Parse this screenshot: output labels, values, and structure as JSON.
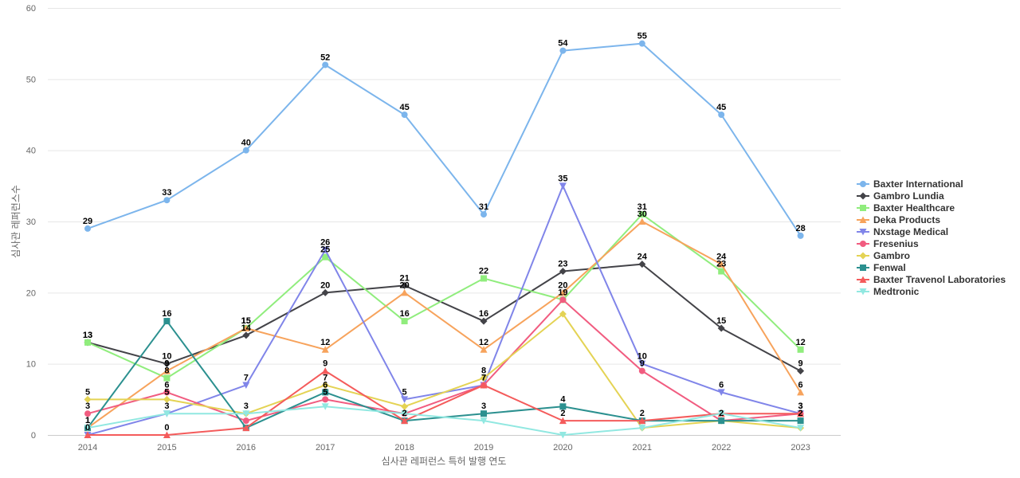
{
  "chart_data": {
    "type": "line",
    "title": "",
    "xlabel": "심사관 레퍼런스 특허 발행 연도",
    "ylabel": "심사관 레퍼런스수",
    "x": [
      "2014",
      "2015",
      "2016",
      "2017",
      "2018",
      "2019",
      "2020",
      "2021",
      "2022",
      "2023"
    ],
    "ylim": [
      0,
      60
    ],
    "yticks": [
      0,
      10,
      20,
      30,
      40,
      50,
      60
    ],
    "grid": true,
    "legend_position": "right",
    "series": [
      {
        "name": "Baxter International",
        "color": "#7cb5ec",
        "marker": "circle",
        "values": [
          29,
          33,
          40,
          52,
          45,
          31,
          54,
          55,
          45,
          28
        ]
      },
      {
        "name": "Gambro Lundia",
        "color": "#434348",
        "marker": "diamond",
        "values": [
          13,
          10,
          14,
          20,
          21,
          16,
          23,
          24,
          15,
          9
        ]
      },
      {
        "name": "Baxter Healthcare",
        "color": "#90ed7d",
        "marker": "square",
        "values": [
          13,
          8,
          15,
          25,
          16,
          22,
          19,
          31,
          23,
          12
        ]
      },
      {
        "name": "Deka Products",
        "color": "#f7a35c",
        "marker": "triangle",
        "values": [
          1,
          9,
          15,
          12,
          20,
          12,
          20,
          30,
          24,
          6
        ]
      },
      {
        "name": "Nxstage Medical",
        "color": "#8085e9",
        "marker": "triangle-down",
        "values": [
          0,
          3,
          7,
          26,
          5,
          7,
          35,
          10,
          6,
          3
        ]
      },
      {
        "name": "Fresenius",
        "color": "#f15c80",
        "marker": "circle",
        "values": [
          3,
          6,
          2,
          5,
          3,
          7,
          19,
          9,
          2,
          3
        ]
      },
      {
        "name": "Gambro",
        "color": "#e4d354",
        "marker": "diamond",
        "values": [
          5,
          5,
          3,
          7,
          4,
          8,
          17,
          1,
          2,
          1
        ]
      },
      {
        "name": "Fenwal",
        "color": "#2b908f",
        "marker": "square",
        "values": [
          1,
          16,
          1,
          6,
          2,
          3,
          4,
          2,
          2,
          2
        ]
      },
      {
        "name": "Baxter Travenol Laboratories",
        "color": "#f45b5b",
        "marker": "triangle",
        "values": [
          0,
          0,
          1,
          9,
          2,
          7,
          2,
          2,
          3,
          3
        ]
      },
      {
        "name": "Medtronic",
        "color": "#91e8e1",
        "marker": "triangle-down",
        "values": [
          1,
          3,
          3,
          4,
          3,
          2,
          0,
          1,
          3,
          1
        ]
      }
    ],
    "data_labels": [
      {
        "series": 0,
        "indices": [
          0,
          1,
          2,
          3,
          4,
          5,
          6,
          7,
          8,
          9
        ]
      },
      {
        "series": 1,
        "indices": [
          0,
          1,
          2,
          3,
          4,
          5,
          6,
          7,
          8,
          9
        ]
      },
      {
        "series": 2,
        "indices": [
          0,
          1,
          2,
          3,
          4,
          5,
          6,
          7,
          8,
          9
        ]
      },
      {
        "series": 3,
        "indices": [
          0,
          1,
          2,
          3,
          4,
          5,
          6,
          7,
          8,
          9
        ]
      },
      {
        "series": 4,
        "indices": [
          0,
          1,
          2,
          3,
          4,
          5,
          6,
          7,
          8,
          9
        ]
      },
      {
        "series": 5,
        "indices": [
          0,
          1,
          3,
          5,
          7
        ]
      },
      {
        "series": 6,
        "indices": [
          0,
          1,
          2,
          3,
          5
        ]
      },
      {
        "series": 7,
        "indices": [
          0,
          1,
          3,
          4,
          5,
          6,
          7,
          8,
          9
        ]
      },
      {
        "series": 8,
        "indices": [
          1,
          3,
          6,
          9
        ]
      },
      {
        "series": 9,
        "indices": []
      }
    ]
  }
}
